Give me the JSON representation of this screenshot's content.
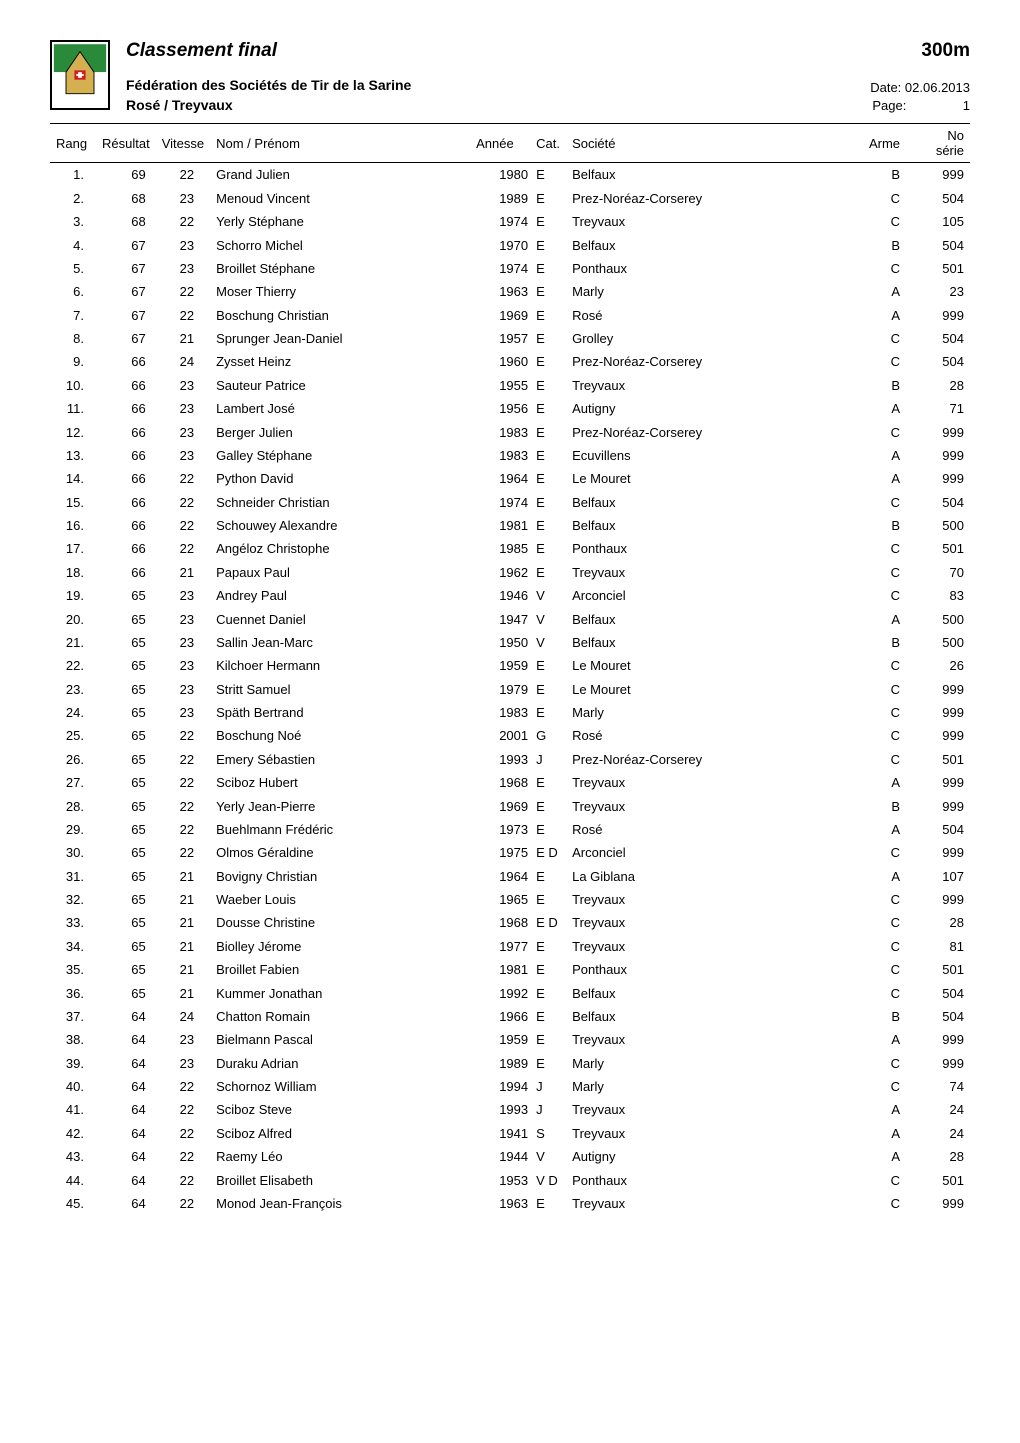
{
  "header": {
    "title": "Classement final",
    "distance": "300m",
    "federation": "Fédération des Sociétés de Tir de la Sarine",
    "category": "Rosé / Treyvaux",
    "date_label": "Date:",
    "date_value": "02.06.2013",
    "page_label": "Page:",
    "page_value": "1"
  },
  "columns": {
    "rang": "Rang",
    "resultat": "Résultat",
    "vitesse": "Vitesse",
    "nom": "Nom / Prénom",
    "annee": "Année",
    "cat": "Cat.",
    "societe": "Société",
    "arme": "Arme",
    "serie": "No série"
  },
  "rows": [
    {
      "rang": "1.",
      "resultat": "69",
      "vitesse": "22",
      "nom": "Grand Julien",
      "annee": "1980",
      "cat": "E",
      "societe": "Belfaux",
      "arme": "B",
      "serie": "999"
    },
    {
      "rang": "2.",
      "resultat": "68",
      "vitesse": "23",
      "nom": "Menoud Vincent",
      "annee": "1989",
      "cat": "E",
      "societe": "Prez-Noréaz-Corserey",
      "arme": "C",
      "serie": "504"
    },
    {
      "rang": "3.",
      "resultat": "68",
      "vitesse": "22",
      "nom": "Yerly Stéphane",
      "annee": "1974",
      "cat": "E",
      "societe": "Treyvaux",
      "arme": "C",
      "serie": "105"
    },
    {
      "rang": "4.",
      "resultat": "67",
      "vitesse": "23",
      "nom": "Schorro Michel",
      "annee": "1970",
      "cat": "E",
      "societe": "Belfaux",
      "arme": "B",
      "serie": "504"
    },
    {
      "rang": "5.",
      "resultat": "67",
      "vitesse": "23",
      "nom": "Broillet Stéphane",
      "annee": "1974",
      "cat": "E",
      "societe": "Ponthaux",
      "arme": "C",
      "serie": "501"
    },
    {
      "rang": "6.",
      "resultat": "67",
      "vitesse": "22",
      "nom": "Moser Thierry",
      "annee": "1963",
      "cat": "E",
      "societe": "Marly",
      "arme": "A",
      "serie": "23"
    },
    {
      "rang": "7.",
      "resultat": "67",
      "vitesse": "22",
      "nom": "Boschung Christian",
      "annee": "1969",
      "cat": "E",
      "societe": "Rosé",
      "arme": "A",
      "serie": "999"
    },
    {
      "rang": "8.",
      "resultat": "67",
      "vitesse": "21",
      "nom": "Sprunger Jean-Daniel",
      "annee": "1957",
      "cat": "E",
      "societe": "Grolley",
      "arme": "C",
      "serie": "504"
    },
    {
      "rang": "9.",
      "resultat": "66",
      "vitesse": "24",
      "nom": "Zysset Heinz",
      "annee": "1960",
      "cat": "E",
      "societe": "Prez-Noréaz-Corserey",
      "arme": "C",
      "serie": "504"
    },
    {
      "rang": "10.",
      "resultat": "66",
      "vitesse": "23",
      "nom": "Sauteur Patrice",
      "annee": "1955",
      "cat": "E",
      "societe": "Treyvaux",
      "arme": "B",
      "serie": "28"
    },
    {
      "rang": "11.",
      "resultat": "66",
      "vitesse": "23",
      "nom": "Lambert José",
      "annee": "1956",
      "cat": "E",
      "societe": "Autigny",
      "arme": "A",
      "serie": "71"
    },
    {
      "rang": "12.",
      "resultat": "66",
      "vitesse": "23",
      "nom": "Berger Julien",
      "annee": "1983",
      "cat": "E",
      "societe": "Prez-Noréaz-Corserey",
      "arme": "C",
      "serie": "999"
    },
    {
      "rang": "13.",
      "resultat": "66",
      "vitesse": "23",
      "nom": "Galley Stéphane",
      "annee": "1983",
      "cat": "E",
      "societe": "Ecuvillens",
      "arme": "A",
      "serie": "999"
    },
    {
      "rang": "14.",
      "resultat": "66",
      "vitesse": "22",
      "nom": "Python David",
      "annee": "1964",
      "cat": "E",
      "societe": "Le Mouret",
      "arme": "A",
      "serie": "999"
    },
    {
      "rang": "15.",
      "resultat": "66",
      "vitesse": "22",
      "nom": "Schneider Christian",
      "annee": "1974",
      "cat": "E",
      "societe": "Belfaux",
      "arme": "C",
      "serie": "504"
    },
    {
      "rang": "16.",
      "resultat": "66",
      "vitesse": "22",
      "nom": "Schouwey Alexandre",
      "annee": "1981",
      "cat": "E",
      "societe": "Belfaux",
      "arme": "B",
      "serie": "500"
    },
    {
      "rang": "17.",
      "resultat": "66",
      "vitesse": "22",
      "nom": "Angéloz Christophe",
      "annee": "1985",
      "cat": "E",
      "societe": "Ponthaux",
      "arme": "C",
      "serie": "501"
    },
    {
      "rang": "18.",
      "resultat": "66",
      "vitesse": "21",
      "nom": "Papaux Paul",
      "annee": "1962",
      "cat": "E",
      "societe": "Treyvaux",
      "arme": "C",
      "serie": "70"
    },
    {
      "rang": "19.",
      "resultat": "65",
      "vitesse": "23",
      "nom": "Andrey Paul",
      "annee": "1946",
      "cat": "V",
      "societe": "Arconciel",
      "arme": "C",
      "serie": "83"
    },
    {
      "rang": "20.",
      "resultat": "65",
      "vitesse": "23",
      "nom": "Cuennet Daniel",
      "annee": "1947",
      "cat": "V",
      "societe": "Belfaux",
      "arme": "A",
      "serie": "500"
    },
    {
      "rang": "21.",
      "resultat": "65",
      "vitesse": "23",
      "nom": "Sallin Jean-Marc",
      "annee": "1950",
      "cat": "V",
      "societe": "Belfaux",
      "arme": "B",
      "serie": "500"
    },
    {
      "rang": "22.",
      "resultat": "65",
      "vitesse": "23",
      "nom": "Kilchoer Hermann",
      "annee": "1959",
      "cat": "E",
      "societe": "Le Mouret",
      "arme": "C",
      "serie": "26"
    },
    {
      "rang": "23.",
      "resultat": "65",
      "vitesse": "23",
      "nom": "Stritt Samuel",
      "annee": "1979",
      "cat": "E",
      "societe": "Le Mouret",
      "arme": "C",
      "serie": "999"
    },
    {
      "rang": "24.",
      "resultat": "65",
      "vitesse": "23",
      "nom": "Späth Bertrand",
      "annee": "1983",
      "cat": "E",
      "societe": "Marly",
      "arme": "C",
      "serie": "999"
    },
    {
      "rang": "25.",
      "resultat": "65",
      "vitesse": "22",
      "nom": "Boschung Noé",
      "annee": "2001",
      "cat": "G",
      "societe": "Rosé",
      "arme": "C",
      "serie": "999"
    },
    {
      "rang": "26.",
      "resultat": "65",
      "vitesse": "22",
      "nom": "Emery Sébastien",
      "annee": "1993",
      "cat": "J",
      "societe": "Prez-Noréaz-Corserey",
      "arme": "C",
      "serie": "501"
    },
    {
      "rang": "27.",
      "resultat": "65",
      "vitesse": "22",
      "nom": "Sciboz Hubert",
      "annee": "1968",
      "cat": "E",
      "societe": "Treyvaux",
      "arme": "A",
      "serie": "999"
    },
    {
      "rang": "28.",
      "resultat": "65",
      "vitesse": "22",
      "nom": "Yerly Jean-Pierre",
      "annee": "1969",
      "cat": "E",
      "societe": "Treyvaux",
      "arme": "B",
      "serie": "999"
    },
    {
      "rang": "29.",
      "resultat": "65",
      "vitesse": "22",
      "nom": "Buehlmann Frédéric",
      "annee": "1973",
      "cat": "E",
      "societe": "Rosé",
      "arme": "A",
      "serie": "504"
    },
    {
      "rang": "30.",
      "resultat": "65",
      "vitesse": "22",
      "nom": "Olmos Géraldine",
      "annee": "1975",
      "cat": "E D",
      "societe": "Arconciel",
      "arme": "C",
      "serie": "999"
    },
    {
      "rang": "31.",
      "resultat": "65",
      "vitesse": "21",
      "nom": "Bovigny Christian",
      "annee": "1964",
      "cat": "E",
      "societe": "La Giblana",
      "arme": "A",
      "serie": "107"
    },
    {
      "rang": "32.",
      "resultat": "65",
      "vitesse": "21",
      "nom": "Waeber Louis",
      "annee": "1965",
      "cat": "E",
      "societe": "Treyvaux",
      "arme": "C",
      "serie": "999"
    },
    {
      "rang": "33.",
      "resultat": "65",
      "vitesse": "21",
      "nom": "Dousse Christine",
      "annee": "1968",
      "cat": "E D",
      "societe": "Treyvaux",
      "arme": "C",
      "serie": "28"
    },
    {
      "rang": "34.",
      "resultat": "65",
      "vitesse": "21",
      "nom": "Biolley Jérome",
      "annee": "1977",
      "cat": "E",
      "societe": "Treyvaux",
      "arme": "C",
      "serie": "81"
    },
    {
      "rang": "35.",
      "resultat": "65",
      "vitesse": "21",
      "nom": "Broillet Fabien",
      "annee": "1981",
      "cat": "E",
      "societe": "Ponthaux",
      "arme": "C",
      "serie": "501"
    },
    {
      "rang": "36.",
      "resultat": "65",
      "vitesse": "21",
      "nom": "Kummer Jonathan",
      "annee": "1992",
      "cat": "E",
      "societe": "Belfaux",
      "arme": "C",
      "serie": "504"
    },
    {
      "rang": "37.",
      "resultat": "64",
      "vitesse": "24",
      "nom": "Chatton Romain",
      "annee": "1966",
      "cat": "E",
      "societe": "Belfaux",
      "arme": "B",
      "serie": "504"
    },
    {
      "rang": "38.",
      "resultat": "64",
      "vitesse": "23",
      "nom": "Bielmann Pascal",
      "annee": "1959",
      "cat": "E",
      "societe": "Treyvaux",
      "arme": "A",
      "serie": "999"
    },
    {
      "rang": "39.",
      "resultat": "64",
      "vitesse": "23",
      "nom": "Duraku Adrian",
      "annee": "1989",
      "cat": "E",
      "societe": "Marly",
      "arme": "C",
      "serie": "999"
    },
    {
      "rang": "40.",
      "resultat": "64",
      "vitesse": "22",
      "nom": "Schornoz William",
      "annee": "1994",
      "cat": "J",
      "societe": "Marly",
      "arme": "C",
      "serie": "74"
    },
    {
      "rang": "41.",
      "resultat": "64",
      "vitesse": "22",
      "nom": "Sciboz Steve",
      "annee": "1993",
      "cat": "J",
      "societe": "Treyvaux",
      "arme": "A",
      "serie": "24"
    },
    {
      "rang": "42.",
      "resultat": "64",
      "vitesse": "22",
      "nom": "Sciboz Alfred",
      "annee": "1941",
      "cat": "S",
      "societe": "Treyvaux",
      "arme": "A",
      "serie": "24"
    },
    {
      "rang": "43.",
      "resultat": "64",
      "vitesse": "22",
      "nom": "Raemy Léo",
      "annee": "1944",
      "cat": "V",
      "societe": "Autigny",
      "arme": "A",
      "serie": "28"
    },
    {
      "rang": "44.",
      "resultat": "64",
      "vitesse": "22",
      "nom": "Broillet Elisabeth",
      "annee": "1953",
      "cat": "V D",
      "societe": "Ponthaux",
      "arme": "C",
      "serie": "501"
    },
    {
      "rang": "45.",
      "resultat": "64",
      "vitesse": "22",
      "nom": "Monod Jean-François",
      "annee": "1963",
      "cat": "E",
      "societe": "Treyvaux",
      "arme": "C",
      "serie": "999"
    }
  ]
}
